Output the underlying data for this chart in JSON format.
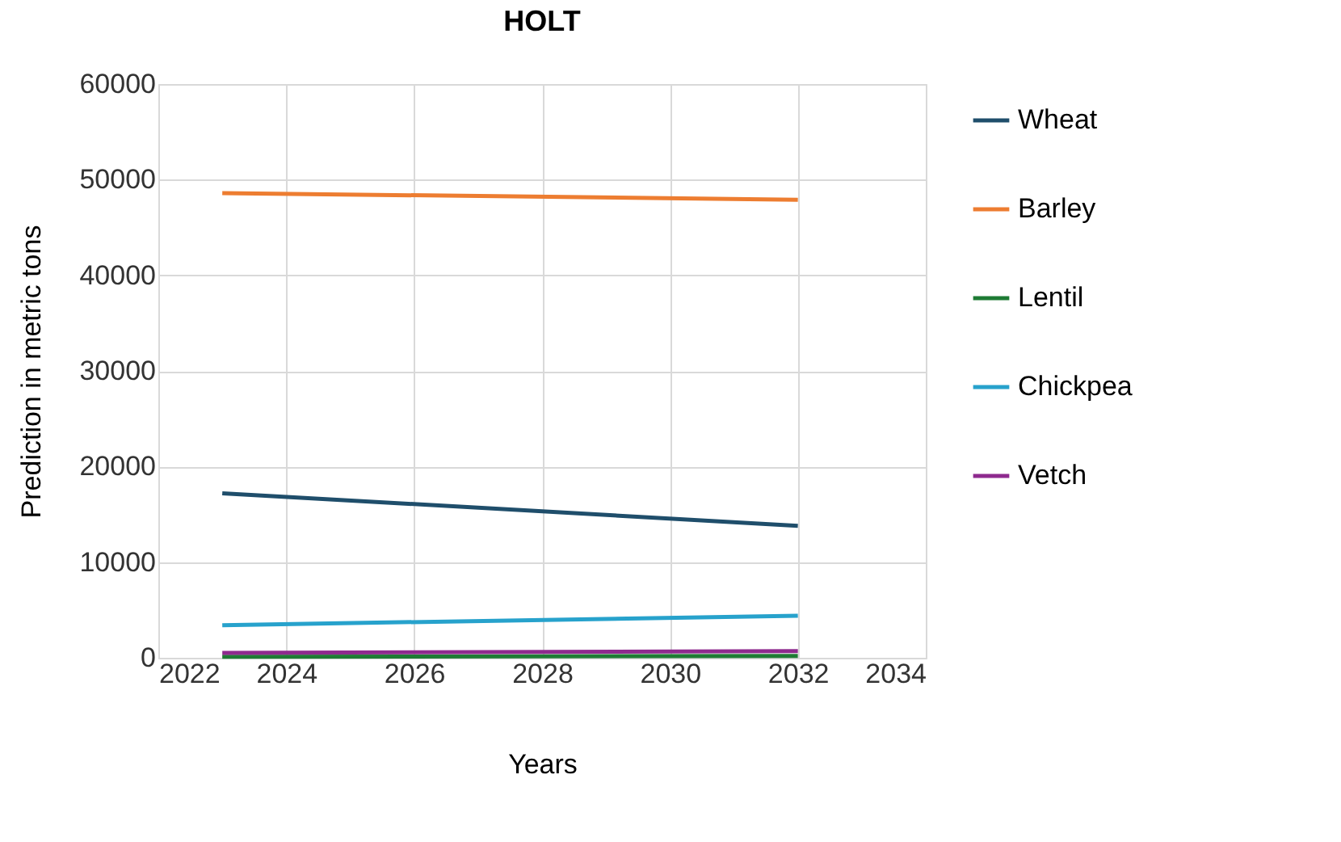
{
  "chart_data": {
    "type": "line",
    "title": "HOLT",
    "xlabel": "Years",
    "ylabel": "Prediction in metric tons",
    "x": [
      2023,
      2032
    ],
    "series": [
      {
        "name": "Wheat",
        "color": "#1f4e6b",
        "values": [
          17200,
          13800
        ]
      },
      {
        "name": "Barley",
        "color": "#ed7d31",
        "values": [
          48600,
          47900
        ]
      },
      {
        "name": "Lentil",
        "color": "#1e7b34",
        "values": [
          100,
          200
        ]
      },
      {
        "name": "Chickpea",
        "color": "#27a2cc",
        "values": [
          3400,
          4400
        ]
      },
      {
        "name": "Vetch",
        "color": "#8e2a8e",
        "values": [
          500,
          700
        ]
      }
    ],
    "xlim": [
      2022,
      2034
    ],
    "xticks": [
      2022,
      2024,
      2026,
      2028,
      2030,
      2032,
      2034
    ],
    "ylim": [
      0,
      60000
    ],
    "yticks": [
      0,
      10000,
      20000,
      30000,
      40000,
      50000,
      60000
    ],
    "grid": true,
    "legend": "right",
    "marker": "none",
    "line_style": "solid"
  }
}
